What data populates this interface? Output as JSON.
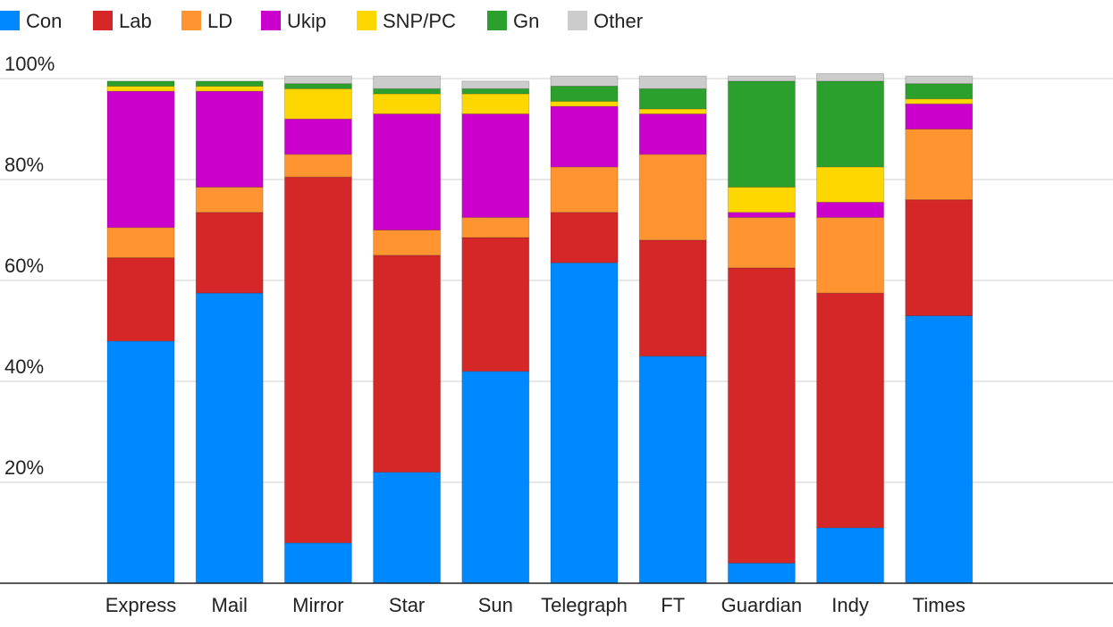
{
  "chart_data": {
    "type": "bar",
    "stacked": true,
    "categories": [
      "Express",
      "Mail",
      "Mirror",
      "Star",
      "Sun",
      "Telegraph",
      "FT",
      "Guardian",
      "Indy",
      "Times"
    ],
    "series": [
      {
        "name": "Con",
        "color": "#0088ff",
        "values": [
          48,
          57.5,
          8,
          22,
          42,
          63.5,
          45,
          4,
          11,
          53
        ]
      },
      {
        "name": "Lab",
        "color": "#d62728",
        "values": [
          16.5,
          16,
          72.5,
          43,
          26.5,
          10,
          23,
          58.5,
          46.5,
          23
        ]
      },
      {
        "name": "LD",
        "color": "#ff9430",
        "values": [
          6,
          5,
          4.5,
          5,
          4,
          9,
          17,
          10,
          15,
          14
        ]
      },
      {
        "name": "Ukip",
        "color": "#cc00cc",
        "values": [
          27,
          19,
          7,
          23,
          20.5,
          12,
          8,
          1,
          3,
          5
        ]
      },
      {
        "name": "SNP/PC",
        "color": "#ffd700",
        "values": [
          1,
          1,
          6,
          4,
          4,
          1,
          1,
          5,
          7,
          1
        ]
      },
      {
        "name": "Gn",
        "color": "#2ca02c",
        "values": [
          1,
          1,
          1,
          1,
          1,
          3,
          4,
          21,
          17,
          3
        ]
      },
      {
        "name": "Other",
        "color": "#cccccc",
        "values": [
          0,
          0,
          1.5,
          2.5,
          1.5,
          2,
          2.5,
          1,
          1.5,
          1.5
        ]
      }
    ],
    "yticks": [
      "20%",
      "40%",
      "60%",
      "80%",
      "100%"
    ],
    "ytick_values": [
      20,
      40,
      60,
      80,
      100
    ],
    "ylim": [
      0,
      100
    ],
    "grid": true,
    "legend_position": "top-left",
    "title": "",
    "xlabel": "",
    "ylabel": ""
  }
}
